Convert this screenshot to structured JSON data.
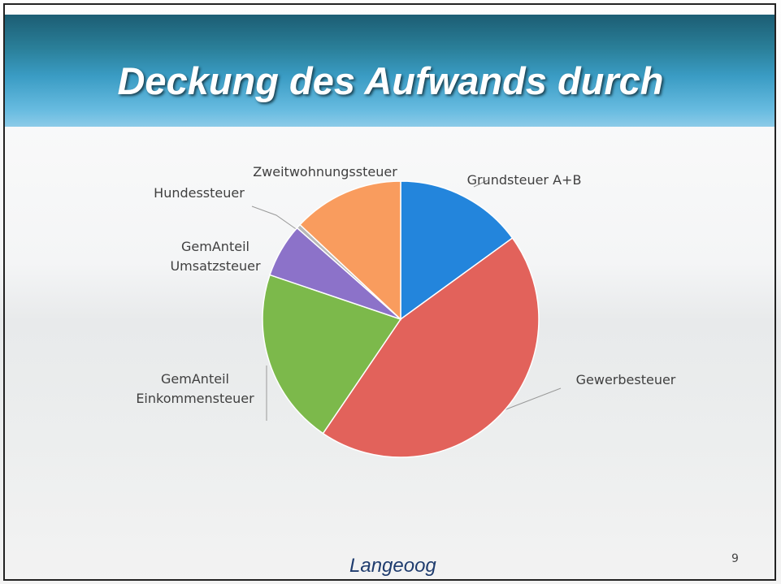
{
  "chart_data": {
    "type": "pie",
    "title": "Deckung des Aufwands durch",
    "categories": [
      "Grundsteuer A+B",
      "Gewerbesteuer",
      "GemAnteil Einkommensteuer",
      "GemAnteil Umsatzsteuer",
      "Hundessteuer",
      "Zweitwohnungssteuer"
    ],
    "values": [
      15,
      44.5,
      20.7,
      6.3,
      0.5,
      13
    ],
    "colors": [
      "#2385dc",
      "#e2625b",
      "#7cb94b",
      "#8c72c9",
      "#b8b8b8",
      "#f99c5e"
    ]
  },
  "footer": {
    "logo": "Langeoog",
    "page_number": "9"
  }
}
